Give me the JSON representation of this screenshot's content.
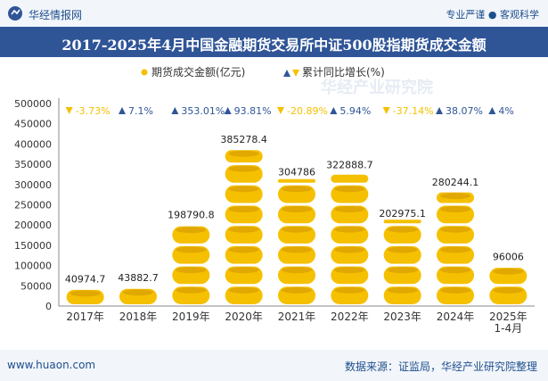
{
  "header": {
    "brand": "华经情报网",
    "right_text": "专业严谨 ● 客观科学"
  },
  "title": "2017-2025年4月中国金融期货交易所中证500股指期货成交金额",
  "footer": {
    "left": "www.huaon.com",
    "right": "数据来源：证监局，华经产业研究院整理"
  },
  "watermark": "华经产业研究院",
  "colors": {
    "coin": "#f5c000",
    "coin_dark": "#e0a800",
    "up": "#2f5597",
    "down": "#f5c000",
    "title_band": "#2f5597"
  },
  "chart_data": {
    "type": "bar",
    "categories": [
      "2017年",
      "2018年",
      "2019年",
      "2020年",
      "2021年",
      "2022年",
      "2023年",
      "2024年",
      "2025年\n1-4月"
    ],
    "series": [
      {
        "name": "期货成交金额(亿元)",
        "values": [
          40974.7,
          43882.7,
          198790.8,
          385278.4,
          304786,
          322888.7,
          202975.1,
          280244.1,
          96006
        ],
        "labels": [
          "40974.7",
          "43882.7",
          "198790.8",
          "385278.4",
          "304786",
          "322888.7",
          "202975.1",
          "280244.1",
          "96006"
        ]
      },
      {
        "name": "累计同比增长(%)",
        "values": [
          -3.73,
          7.1,
          353.01,
          93.81,
          -20.89,
          5.94,
          -37.14,
          38.07,
          4
        ],
        "labels": [
          "-3.73%",
          "7.1%",
          "353.01%",
          "93.81%",
          "-20.89%",
          "5.94%",
          "-37.14%",
          "38.07%",
          "4%"
        ]
      }
    ],
    "ylim": [
      0,
      500000
    ],
    "yticks": [
      "0",
      "50000",
      "100000",
      "150000",
      "200000",
      "250000",
      "300000",
      "350000",
      "400000",
      "450000",
      "500000"
    ],
    "legend_position": "top-center"
  }
}
